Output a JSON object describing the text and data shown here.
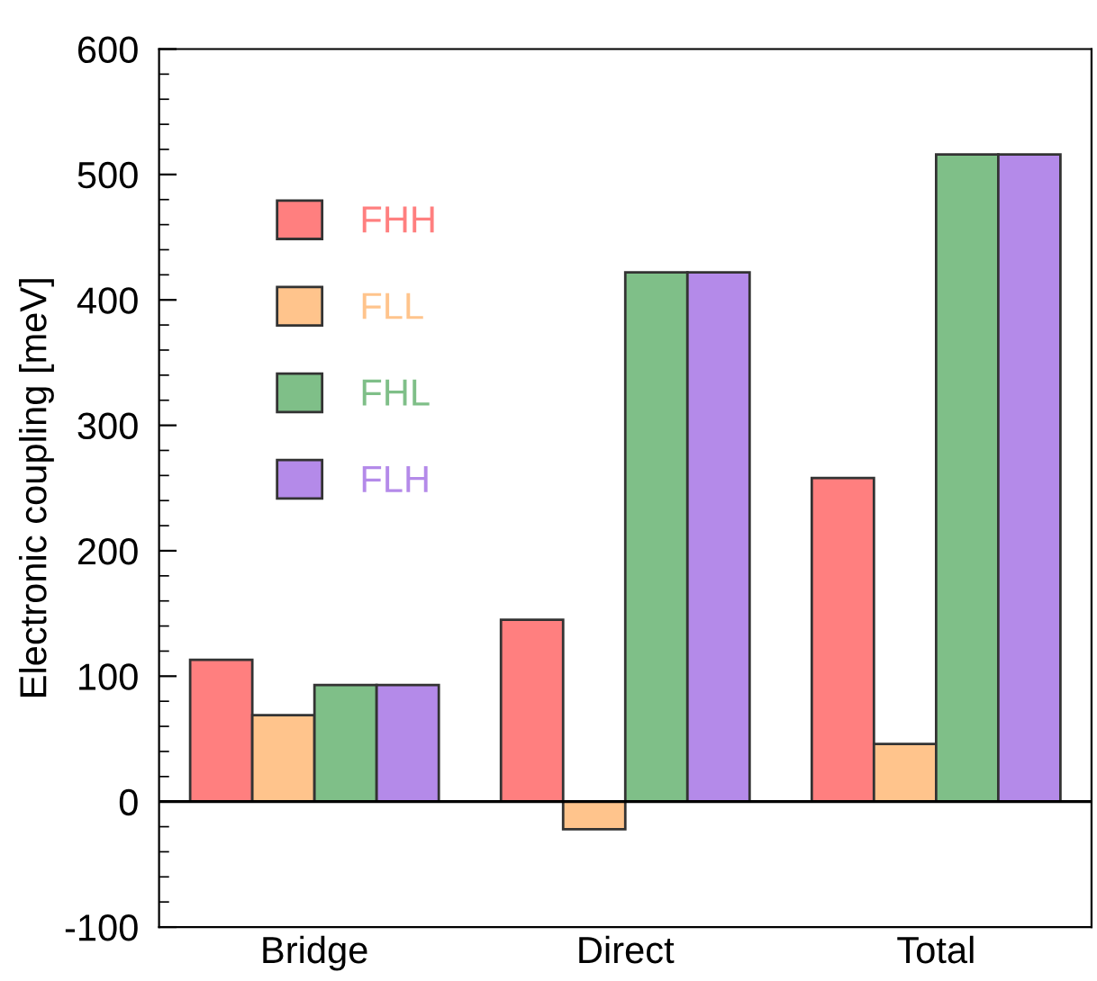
{
  "chart_data": {
    "type": "bar",
    "ylabel": "Electronic coupling [meV]",
    "categories": [
      "Bridge",
      "Direct",
      "Total"
    ],
    "series": [
      {
        "name": "FHH",
        "color": "#ff7f7f",
        "values": [
          113,
          145,
          258
        ]
      },
      {
        "name": "FLL",
        "color": "#ffc48c",
        "values": [
          69,
          -22,
          46
        ]
      },
      {
        "name": "FHL",
        "color": "#7fbf88",
        "values": [
          93,
          422,
          516
        ]
      },
      {
        "name": "FLH",
        "color": "#b48ae9",
        "values": [
          93,
          422,
          516
        ]
      }
    ],
    "ylim": [
      -100,
      600
    ],
    "yticks": [
      -100,
      0,
      100,
      200,
      300,
      400,
      500,
      600
    ],
    "ref_lines": [
      {
        "axis": "y",
        "value": 0,
        "color": "#000000"
      }
    ],
    "grid": false,
    "legend": "top left"
  }
}
